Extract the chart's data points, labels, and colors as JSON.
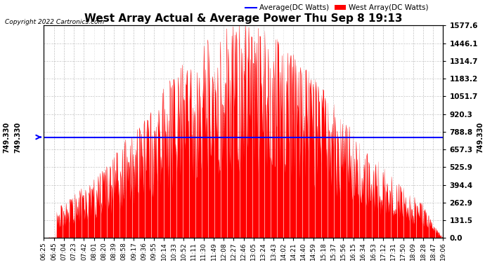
{
  "title": "West Array Actual & Average Power Thu Sep 8 19:13",
  "copyright": "Copyright 2022 Cartronics.com",
  "legend_avg": "Average(DC Watts)",
  "legend_west": "West Array(DC Watts)",
  "avg_value": 749.33,
  "y_max": 1577.6,
  "y_min": 0.0,
  "y_ticks": [
    0.0,
    131.5,
    262.9,
    394.4,
    525.9,
    657.3,
    788.8,
    920.3,
    1051.7,
    1183.2,
    1314.7,
    1446.1,
    1577.6
  ],
  "bg_color": "#ffffff",
  "fill_color": "#ff0000",
  "line_color": "#0000ff",
  "grid_color": "#aaaaaa",
  "x_labels": [
    "06:25",
    "06:45",
    "07:04",
    "07:23",
    "07:42",
    "08:01",
    "08:20",
    "08:39",
    "08:58",
    "09:17",
    "09:36",
    "09:55",
    "10:14",
    "10:33",
    "10:52",
    "11:11",
    "11:30",
    "11:49",
    "12:08",
    "12:27",
    "12:46",
    "13:05",
    "13:24",
    "13:43",
    "14:02",
    "14:21",
    "14:40",
    "14:59",
    "15:18",
    "15:37",
    "15:56",
    "16:15",
    "16:34",
    "16:53",
    "17:12",
    "17:31",
    "17:50",
    "18:09",
    "18:28",
    "18:47",
    "19:06"
  ]
}
